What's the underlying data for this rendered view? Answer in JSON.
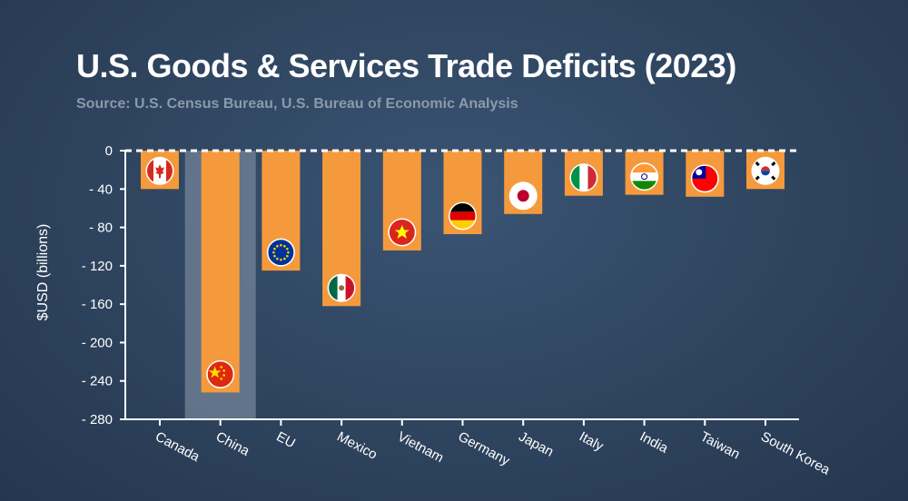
{
  "title": "U.S. Goods & Services Trade Deficits (2023)",
  "subtitle": "Source: U.S. Census Bureau, U.S. Bureau of Economic Analysis",
  "colors": {
    "bar": "#f59a3c",
    "highlight": "#6b7d92",
    "axis": "#ffffff"
  },
  "chart_data": {
    "type": "bar",
    "title": "U.S. Goods & Services Trade Deficits (2023)",
    "xlabel": "",
    "ylabel": "$USD (billions)",
    "ylim": [
      -280,
      0
    ],
    "yticks": [
      0,
      -40,
      -80,
      -120,
      -160,
      -200,
      -240,
      -280
    ],
    "ytick_labels": [
      "0",
      "- 40",
      "- 80",
      "- 120",
      "- 160",
      "- 200",
      "- 240",
      "- 280"
    ],
    "grid": false,
    "highlighted_category": "China",
    "categories": [
      "Canada",
      "China",
      "EU",
      "Mexico",
      "Vietnam",
      "Germany",
      "Japan",
      "Italy",
      "India",
      "Taiwan",
      "South Korea"
    ],
    "values": [
      -40,
      -252,
      -125,
      -162,
      -104,
      -87,
      -66,
      -47,
      -46,
      -48,
      -40
    ],
    "flag_icons": [
      "canada-flag-icon",
      "china-flag-icon",
      "eu-flag-icon",
      "mexico-flag-icon",
      "vietnam-flag-icon",
      "germany-flag-icon",
      "japan-flag-icon",
      "italy-flag-icon",
      "india-flag-icon",
      "taiwan-flag-icon",
      "south-korea-flag-icon"
    ]
  }
}
